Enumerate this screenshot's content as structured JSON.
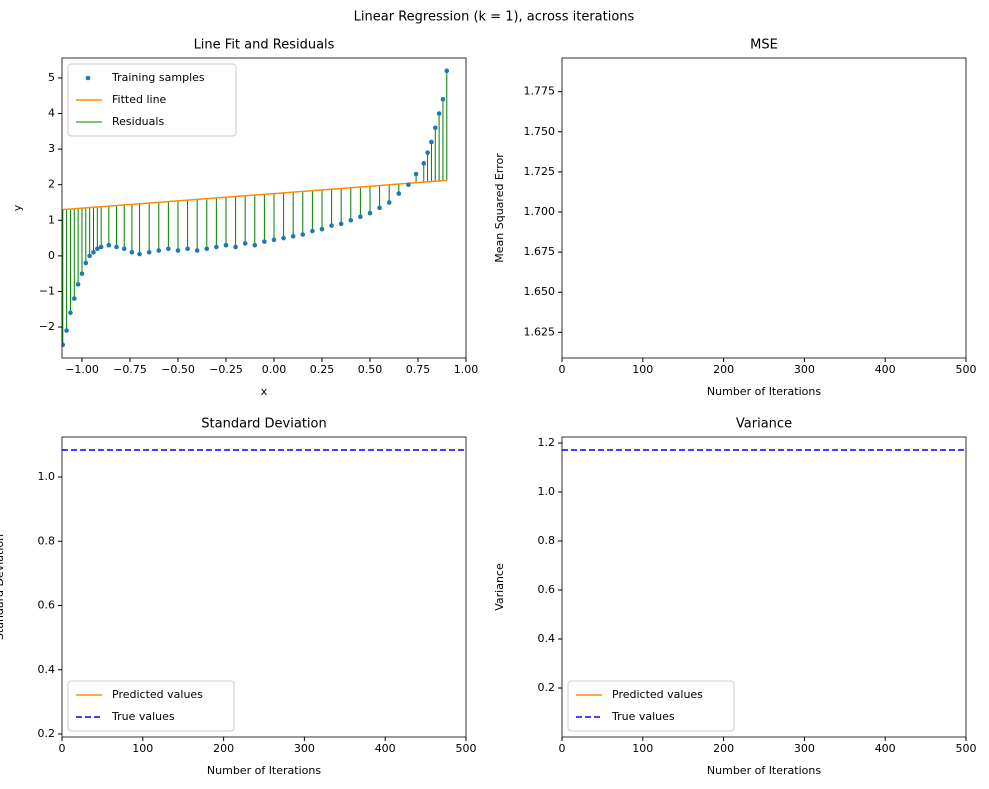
{
  "title": "Linear Regression (k = 1), across iterations",
  "chart_data": [
    {
      "type": "scatter",
      "title": "Line Fit and Residuals",
      "xlabel": "x",
      "ylabel": "y",
      "xlim": [
        -1.104,
        1.0
      ],
      "ylim": [
        -2.87,
        5.56
      ],
      "xticks": [
        {
          "value": -1,
          "label": "−1.00"
        },
        {
          "value": -0.75,
          "label": "−0.75"
        },
        {
          "value": -0.5,
          "label": "−0.50"
        },
        {
          "value": -0.25,
          "label": "−0.25"
        },
        {
          "value": 0,
          "label": "0.00"
        },
        {
          "value": 0.25,
          "label": "0.25"
        },
        {
          "value": 0.5,
          "label": "0.50"
        },
        {
          "value": 0.75,
          "label": "0.75"
        },
        {
          "value": 1,
          "label": "1.00"
        }
      ],
      "yticks": [
        {
          "value": -2,
          "label": "−2"
        },
        {
          "value": -1,
          "label": "−1"
        },
        0,
        1,
        2,
        3,
        4,
        5
      ],
      "legend": "upper left",
      "series": [
        {
          "name": "Training samples",
          "color": "#1f77b4",
          "style": "dots",
          "x": [
            -1.1,
            -1.08,
            -1.06,
            -1.04,
            -1.02,
            -1.0,
            -0.98,
            -0.96,
            -0.94,
            -0.92,
            -0.9,
            -0.86,
            -0.82,
            -0.78,
            -0.74,
            -0.7,
            -0.65,
            -0.6,
            -0.55,
            -0.5,
            -0.45,
            -0.4,
            -0.35,
            -0.3,
            -0.25,
            -0.2,
            -0.15,
            -0.1,
            -0.05,
            0,
            0.05,
            0.1,
            0.15,
            0.2,
            0.25,
            0.3,
            0.35,
            0.4,
            0.45,
            0.5,
            0.55,
            0.6,
            0.65,
            0.7,
            0.74,
            0.78,
            0.8,
            0.82,
            0.84,
            0.86,
            0.88,
            0.9
          ],
          "values": [
            -2.5,
            -2.1,
            -1.6,
            -1.2,
            -0.8,
            -0.5,
            -0.2,
            0.0,
            0.1,
            0.2,
            0.25,
            0.3,
            0.25,
            0.2,
            0.1,
            0.05,
            0.1,
            0.15,
            0.2,
            0.15,
            0.2,
            0.15,
            0.2,
            0.25,
            0.3,
            0.25,
            0.35,
            0.3,
            0.4,
            0.45,
            0.5,
            0.55,
            0.6,
            0.7,
            0.75,
            0.85,
            0.9,
            1.0,
            1.1,
            1.2,
            1.35,
            1.5,
            1.75,
            2.0,
            2.3,
            2.6,
            2.9,
            3.2,
            3.6,
            4.0,
            4.4,
            5.2
          ]
        },
        {
          "name": "Fitted line",
          "color": "#ff8c00",
          "style": "line",
          "x": [
            -1.1,
            0.9
          ],
          "values": [
            1.3,
            2.12
          ]
        },
        {
          "name": "Residuals",
          "color": "#008000",
          "style": "stems"
        }
      ]
    },
    {
      "type": "line",
      "title": "MSE",
      "xlabel": "Number of Iterations",
      "ylabel": "Mean Squared Error",
      "xlim": [
        0,
        500
      ],
      "ylim": [
        1.609,
        1.796
      ],
      "xticks": [
        0,
        100,
        200,
        300,
        400,
        500
      ],
      "yticks": [
        1.625,
        {
          "value": 1.65,
          "label": "1.650"
        },
        1.675,
        {
          "value": 1.7,
          "label": "1.700"
        },
        1.725,
        {
          "value": 1.75,
          "label": "1.750"
        },
        1.775
      ],
      "series": []
    },
    {
      "type": "line",
      "title": "Standard Deviation",
      "xlabel": "Number of Iterations",
      "ylabel": "Standard Deviation",
      "xlim": [
        0,
        500
      ],
      "ylim": [
        0.1907,
        1.1245
      ],
      "xticks": [
        0,
        100,
        200,
        300,
        400,
        500
      ],
      "yticks": [
        0.2,
        0.4,
        0.6,
        0.8,
        {
          "value": 1,
          "label": "1.0"
        }
      ],
      "legend": "lower left",
      "series": [
        {
          "name": "Predicted values",
          "color": "#ff8c00",
          "style": "line",
          "x": [],
          "values": []
        },
        {
          "name": "True values",
          "color": "#0000ff",
          "style": "dashed",
          "x": [
            0,
            500
          ],
          "values": [
            1.084,
            1.084
          ]
        }
      ]
    },
    {
      "type": "line",
      "title": "Variance",
      "xlabel": "Number of Iterations",
      "ylabel": "Variance",
      "xlim": [
        0,
        500
      ],
      "ylim": [
        0.0,
        1.2245
      ],
      "xticks": [
        0,
        100,
        200,
        300,
        400,
        500
      ],
      "yticks": [
        0.2,
        0.4,
        0.6,
        0.8,
        {
          "value": 1,
          "label": "1.0"
        },
        1.2
      ],
      "legend": "lower left",
      "series": [
        {
          "name": "Predicted values",
          "color": "#ff8c00",
          "style": "line",
          "x": [],
          "values": []
        },
        {
          "name": "True values",
          "color": "#0000ff",
          "style": "dashed",
          "x": [
            0,
            500
          ],
          "values": [
            1.1714,
            1.1714
          ]
        }
      ]
    }
  ]
}
